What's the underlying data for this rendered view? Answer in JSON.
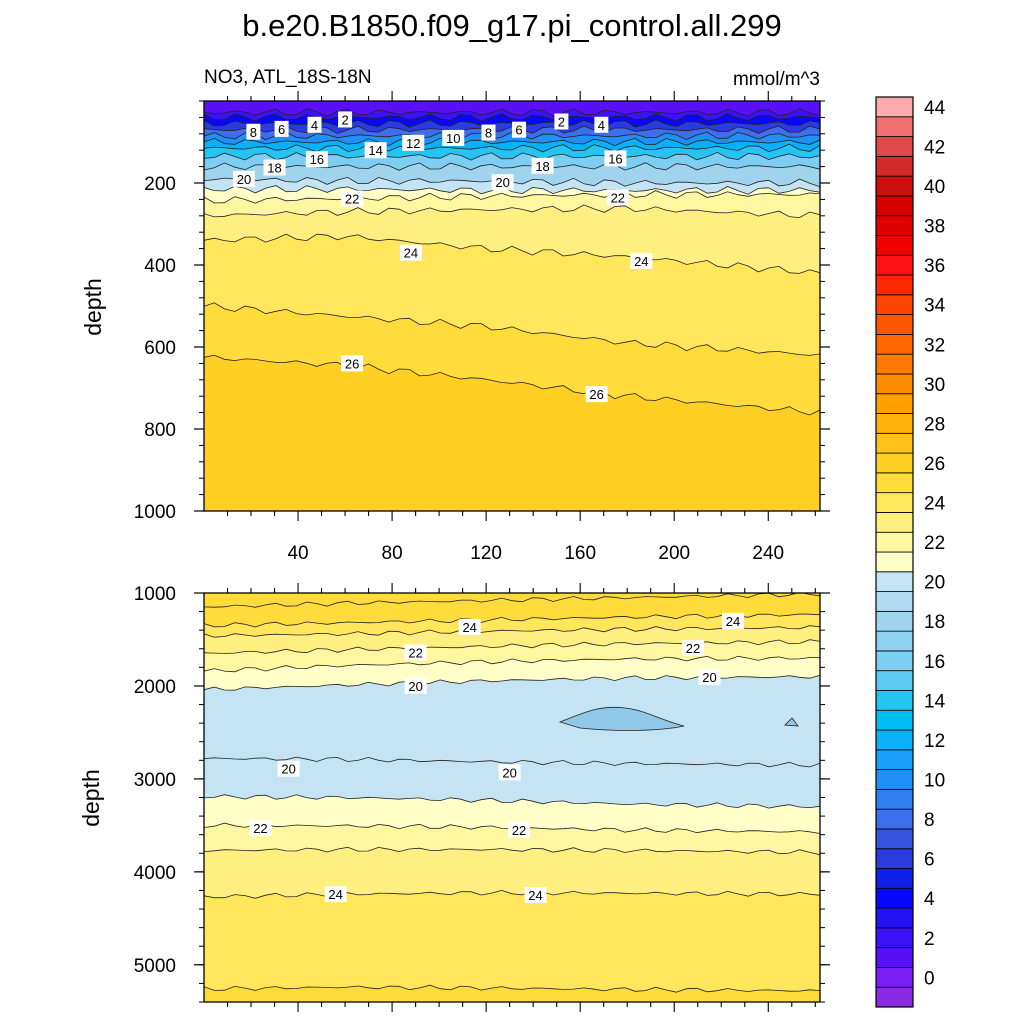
{
  "title": "b.e20.B1850.f09_g17.pi_control.all.299",
  "colorbar": {
    "levels": [
      -1,
      0,
      1,
      2,
      3,
      4,
      5,
      6,
      7,
      8,
      9,
      10,
      11,
      12,
      13,
      14,
      15,
      16,
      17,
      18,
      19,
      20,
      21,
      22,
      23,
      24,
      25,
      26,
      27,
      28,
      29,
      30,
      31,
      32,
      33,
      34,
      35,
      36,
      37,
      38,
      39,
      40,
      41,
      42,
      43,
      44,
      45,
      46
    ],
    "tick_labels": [
      "0",
      "2",
      "4",
      "6",
      "8",
      "10",
      "12",
      "14",
      "16",
      "18",
      "20",
      "22",
      "24",
      "26",
      "28",
      "30",
      "32",
      "34",
      "36",
      "38",
      "40",
      "42",
      "44"
    ],
    "colors": [
      "#8a2be2",
      "#7a1ef5",
      "#5a10f5",
      "#3b12f8",
      "#2412f5",
      "#0808ff",
      "#1020e6",
      "#2a3ce0",
      "#3555e0",
      "#3f6eea",
      "#2e7ef0",
      "#1f90f5",
      "#1aa0f8",
      "#0ab0f8",
      "#00bdf2",
      "#25c4f2",
      "#5ccbf2",
      "#7ccef2",
      "#8ed0ef",
      "#9fd3ee",
      "#b0dbf0",
      "#c4e4f3",
      "#ffffc8",
      "#fff6a0",
      "#ffee80",
      "#ffe65a",
      "#ffdc3c",
      "#ffd023",
      "#ffc21a",
      "#ffb20c",
      "#ff9f00",
      "#ff8c00",
      "#ff7a00",
      "#ff6600",
      "#ff5500",
      "#ff4400",
      "#ff2800",
      "#ff1010",
      "#f00000",
      "#e00000",
      "#d40000",
      "#cc1010",
      "#d42a2a",
      "#e04848",
      "#f07070",
      "#ffaaaa"
    ]
  },
  "chart_data": [
    {
      "type": "contour",
      "panel": "upper",
      "title_left": "NO3, ATL_18S-18N",
      "title_right": "mmol/m^3",
      "xlabel": "",
      "ylabel": "depth",
      "xlim": [
        0,
        262
      ],
      "ylim": [
        1000,
        0
      ],
      "xticks": [
        40,
        80,
        120,
        160,
        200,
        240
      ],
      "yticks": [
        200,
        400,
        600,
        800,
        1000
      ],
      "contours": [
        {
          "level": 2,
          "y": [
            28,
            28,
            28,
            28,
            28
          ]
        },
        {
          "level": 4,
          "y": [
            40,
            40,
            40,
            40,
            40
          ]
        },
        {
          "level": 6,
          "y": [
            55,
            55,
            55,
            55,
            55
          ]
        },
        {
          "level": 8,
          "y": [
            70,
            70,
            70,
            70,
            70
          ]
        },
        {
          "level": 10,
          "y": [
            85,
            85,
            85,
            85,
            85
          ]
        },
        {
          "level": 12,
          "y": [
            100,
            100,
            100,
            100,
            100
          ]
        },
        {
          "level": 14,
          "y": [
            115,
            115,
            115,
            115,
            115
          ]
        },
        {
          "level": 16,
          "y": [
            135,
            135,
            135,
            135,
            135
          ]
        },
        {
          "level": 18,
          "y": [
            160,
            160,
            160,
            160,
            160
          ]
        },
        {
          "level": 20,
          "y": [
            190,
            195,
            195,
            200,
            200
          ]
        },
        {
          "level": 21,
          "y": [
            215,
            215,
            218,
            218,
            218
          ]
        },
        {
          "level": 22,
          "y": [
            243,
            238,
            232,
            228,
            228
          ]
        },
        {
          "level": 23,
          "y": [
            280,
            270,
            265,
            262,
            280
          ]
        },
        {
          "level": 24,
          "y": [
            340,
            330,
            360,
            380,
            420
          ]
        },
        {
          "level": 25,
          "y": [
            500,
            525,
            550,
            590,
            620
          ]
        },
        {
          "level": 26,
          "y": [
            625,
            645,
            680,
            720,
            760
          ]
        }
      ],
      "contour_x": [
        0,
        60,
        120,
        180,
        262
      ],
      "labels": [
        {
          "text": "2",
          "x": 60,
          "y": 45
        },
        {
          "text": "2",
          "x": 152,
          "y": 50
        },
        {
          "text": "4",
          "x": 47,
          "y": 58
        },
        {
          "text": "4",
          "x": 169,
          "y": 58
        },
        {
          "text": "6",
          "x": 33,
          "y": 68
        },
        {
          "text": "6",
          "x": 134,
          "y": 70
        },
        {
          "text": "8",
          "x": 21,
          "y": 75
        },
        {
          "text": "8",
          "x": 121,
          "y": 77
        },
        {
          "text": "10",
          "x": 106,
          "y": 90
        },
        {
          "text": "12",
          "x": 89,
          "y": 102
        },
        {
          "text": "14",
          "x": 73,
          "y": 120
        },
        {
          "text": "16",
          "x": 48,
          "y": 142
        },
        {
          "text": "16",
          "x": 175,
          "y": 140
        },
        {
          "text": "18",
          "x": 30,
          "y": 162
        },
        {
          "text": "18",
          "x": 144,
          "y": 158
        },
        {
          "text": "20",
          "x": 17,
          "y": 190
        },
        {
          "text": "20",
          "x": 127,
          "y": 198
        },
        {
          "text": "22",
          "x": 63,
          "y": 238
        },
        {
          "text": "22",
          "x": 176,
          "y": 235
        },
        {
          "text": "24",
          "x": 88,
          "y": 370
        },
        {
          "text": "24",
          "x": 186,
          "y": 390
        },
        {
          "text": "26",
          "x": 63,
          "y": 640
        },
        {
          "text": "26",
          "x": 167,
          "y": 715
        }
      ]
    },
    {
      "type": "contour",
      "panel": "lower",
      "xlabel": "",
      "ylabel": "depth",
      "xlim": [
        0,
        262
      ],
      "ylim": [
        5400,
        1000
      ],
      "yticks": [
        1000,
        2000,
        3000,
        4000,
        5000
      ],
      "contours": [
        {
          "level": 26,
          "y": [
            1150,
            1110,
            1080,
            1050,
            1010
          ]
        },
        {
          "level": 25,
          "y": [
            1350,
            1320,
            1290,
            1260,
            1230
          ]
        },
        {
          "level": 24,
          "y": [
            1460,
            1440,
            1410,
            1390,
            1370
          ]
        },
        {
          "level": 23,
          "y": [
            1650,
            1610,
            1575,
            1545,
            1525
          ]
        },
        {
          "level": 22,
          "y": [
            1840,
            1780,
            1740,
            1710,
            1700
          ]
        },
        {
          "level": 21,
          "y": [
            2040,
            1990,
            1945,
            1915,
            1900
          ]
        },
        {
          "level": 20,
          "y": [
            2780,
            2790,
            2815,
            2835,
            2850
          ]
        },
        {
          "level": 21,
          "y": [
            3190,
            3200,
            3230,
            3270,
            3300
          ]
        },
        {
          "level": 22,
          "y": [
            3500,
            3505,
            3520,
            3550,
            3570
          ]
        },
        {
          "level": 23,
          "y": [
            3770,
            3760,
            3760,
            3770,
            3790
          ]
        },
        {
          "level": 24,
          "y": [
            4270,
            4240,
            4225,
            4230,
            4240
          ]
        },
        {
          "level": 25,
          "y": [
            5260,
            5240,
            5250,
            5265,
            5280
          ]
        }
      ],
      "contour_x": [
        0,
        60,
        120,
        180,
        262
      ],
      "labels": [
        {
          "text": "24",
          "x": 113,
          "y": 1365
        },
        {
          "text": "24",
          "x": 225,
          "y": 1300
        },
        {
          "text": "22",
          "x": 90,
          "y": 1640
        },
        {
          "text": "22",
          "x": 208,
          "y": 1590
        },
        {
          "text": "20",
          "x": 90,
          "y": 2000
        },
        {
          "text": "20",
          "x": 215,
          "y": 1905
        },
        {
          "text": "20",
          "x": 36,
          "y": 2890
        },
        {
          "text": "20",
          "x": 130,
          "y": 2930
        },
        {
          "text": "22",
          "x": 24,
          "y": 3530
        },
        {
          "text": "22",
          "x": 134,
          "y": 3550
        },
        {
          "text": "24",
          "x": 56,
          "y": 4240
        },
        {
          "text": "24",
          "x": 141,
          "y": 4250
        }
      ]
    }
  ]
}
